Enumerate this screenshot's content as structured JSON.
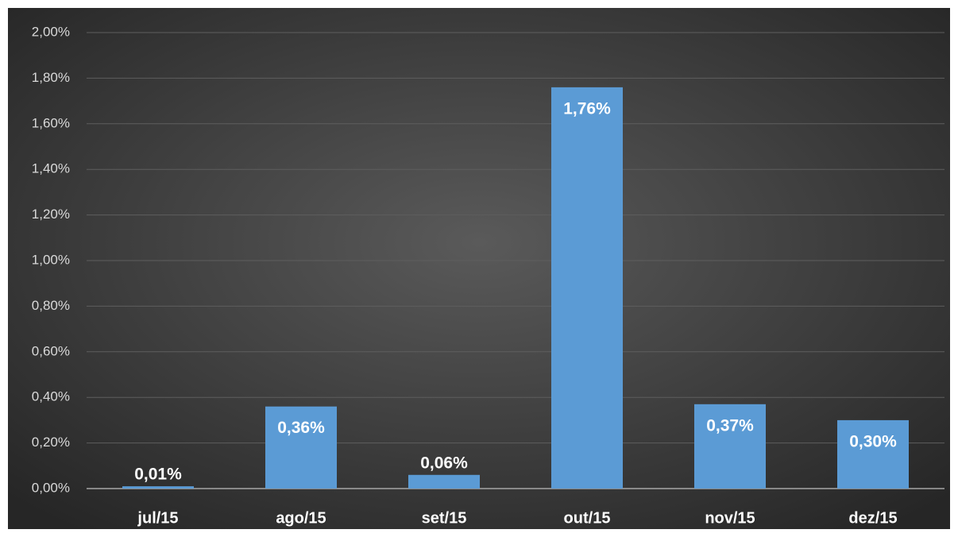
{
  "chart_data": {
    "type": "bar",
    "categories": [
      "jul/15",
      "ago/15",
      "set/15",
      "out/15",
      "nov/15",
      "dez/15"
    ],
    "values": [
      0.01,
      0.36,
      0.06,
      1.76,
      0.37,
      0.3
    ],
    "value_labels": [
      "0,01%",
      "0,36%",
      "0,06%",
      "1,76%",
      "0,37%",
      "0,30%"
    ],
    "color": "#5b9bd5",
    "ylim": [
      0,
      2
    ],
    "yticks": [
      {
        "value": 0,
        "label": "0,00%"
      },
      {
        "value": 0.2,
        "label": "0,20%"
      },
      {
        "value": 0.4,
        "label": "0,40%"
      },
      {
        "value": 0.6,
        "label": "0,60%"
      },
      {
        "value": 0.8,
        "label": "0,80%"
      },
      {
        "value": 1,
        "label": "1,00%"
      },
      {
        "value": 1.2,
        "label": "1,20%"
      },
      {
        "value": 1.4,
        "label": "1,40%"
      },
      {
        "value": 1.6,
        "label": "1,60%"
      },
      {
        "value": 1.8,
        "label": "1,80%"
      },
      {
        "value": 2,
        "label": "2,00%"
      }
    ],
    "grid": true
  }
}
